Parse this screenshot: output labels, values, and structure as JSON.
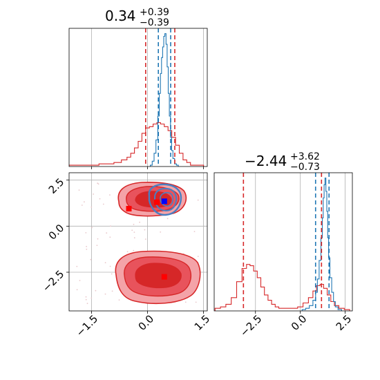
{
  "colors": {
    "red": "#d62728",
    "blue": "#1f77b4",
    "red_fill_light": "#f4a3a8",
    "red_fill_mid": "#e8535c",
    "red_fill_dark": "#d62728",
    "grid": "#b0b0b0",
    "marker_red": "#ff0000",
    "marker_blue": "#0000ff"
  },
  "chart_data": [
    {
      "type": "histogram",
      "panel": "top-left",
      "title_value": "0.34",
      "title_plus": "+0.39",
      "title_minus": "−0.39",
      "xlim": [
        -2.1,
        1.6
      ],
      "xticks": [
        -1.5,
        0.0,
        1.5
      ],
      "grid": true,
      "series": [
        {
          "color": "red",
          "x": [
            -2.0,
            -1.8,
            -1.6,
            -1.4,
            -1.2,
            -1.0,
            -0.8,
            -0.6,
            -0.5,
            -0.4,
            -0.3,
            -0.2,
            -0.1,
            0.0,
            0.1,
            0.2,
            0.3,
            0.4,
            0.5,
            0.6,
            0.7,
            0.8,
            0.9,
            1.0,
            1.1,
            1.2,
            1.4
          ],
          "y": [
            0.01,
            0.01,
            0.01,
            0.01,
            0.02,
            0.02,
            0.03,
            0.05,
            0.07,
            0.1,
            0.14,
            0.19,
            0.25,
            0.29,
            0.3,
            0.32,
            0.33,
            0.32,
            0.3,
            0.27,
            0.22,
            0.16,
            0.1,
            0.05,
            0.03,
            0.01,
            0.01
          ]
        },
        {
          "color": "blue",
          "x": [
            0.1,
            0.15,
            0.2,
            0.25,
            0.3,
            0.33,
            0.36,
            0.39,
            0.42,
            0.45,
            0.48,
            0.51,
            0.54,
            0.57,
            0.6,
            0.63,
            0.66,
            0.7,
            0.75,
            0.8
          ],
          "y": [
            0.01,
            0.04,
            0.1,
            0.2,
            0.38,
            0.55,
            0.7,
            0.82,
            0.9,
            0.98,
            1.0,
            0.92,
            0.75,
            0.55,
            0.38,
            0.22,
            0.12,
            0.06,
            0.02,
            0.01
          ]
        }
      ],
      "vlines_red": [
        -0.05,
        0.73
      ],
      "vlines_blue": [
        0.29,
        0.62
      ]
    },
    {
      "type": "contour",
      "panel": "bottom-left",
      "xlim": [
        -2.1,
        1.6
      ],
      "ylim": [
        -4.6,
        2.9
      ],
      "xticks": [
        -1.5,
        0.0,
        1.5
      ],
      "yticks": [
        2.5,
        0.0,
        -2.5
      ],
      "grid": true,
      "markers": [
        {
          "x": -0.5,
          "y": 0.95,
          "color": "marker_red"
        },
        {
          "x": 0.25,
          "y": 1.3,
          "color": "marker_red"
        },
        {
          "x": 0.45,
          "y": 1.35,
          "color": "marker_blue"
        },
        {
          "x": 0.45,
          "y": -2.75,
          "color": "marker_red"
        }
      ]
    },
    {
      "type": "histogram",
      "panel": "bottom-right",
      "title_value": "−2.44",
      "title_plus": "+3.62",
      "title_minus": "−0.73",
      "xlim": [
        -4.8,
        2.9
      ],
      "xticks": [
        -2.5,
        0.0,
        2.5
      ],
      "grid": true,
      "series": [
        {
          "color": "red",
          "x": [
            -4.6,
            -4.3,
            -4.0,
            -3.7,
            -3.4,
            -3.1,
            -2.9,
            -2.7,
            -2.5,
            -2.3,
            -2.1,
            -1.9,
            -1.7,
            -1.5,
            -1.3,
            -1.1,
            -0.9,
            -0.6,
            -0.3,
            0.0,
            0.3,
            0.6,
            0.8,
            1.0,
            1.2,
            1.4,
            1.6,
            1.8,
            2.0,
            2.3,
            2.6
          ],
          "y": [
            0.02,
            0.03,
            0.05,
            0.1,
            0.22,
            0.32,
            0.35,
            0.34,
            0.3,
            0.25,
            0.18,
            0.12,
            0.08,
            0.05,
            0.03,
            0.02,
            0.02,
            0.02,
            0.02,
            0.03,
            0.06,
            0.1,
            0.15,
            0.19,
            0.2,
            0.17,
            0.12,
            0.07,
            0.04,
            0.02,
            0.01
          ]
        },
        {
          "color": "blue",
          "x": [
            0.2,
            0.4,
            0.6,
            0.8,
            0.9,
            1.0,
            1.1,
            1.2,
            1.25,
            1.3,
            1.35,
            1.4,
            1.45,
            1.5,
            1.55,
            1.6,
            1.7,
            1.8,
            1.9,
            2.0,
            2.2
          ],
          "y": [
            0.01,
            0.02,
            0.04,
            0.08,
            0.14,
            0.24,
            0.38,
            0.55,
            0.7,
            0.85,
            0.95,
            1.0,
            0.9,
            0.75,
            0.55,
            0.4,
            0.25,
            0.14,
            0.07,
            0.03,
            0.01
          ]
        }
      ],
      "vlines_red": [
        -3.17,
        1.18
      ],
      "vlines_blue": [
        0.85,
        1.6
      ]
    }
  ]
}
